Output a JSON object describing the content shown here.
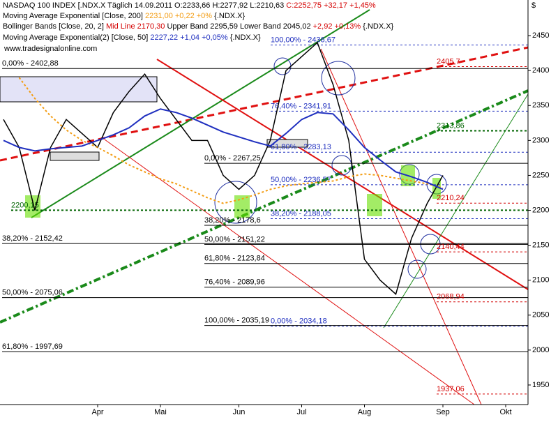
{
  "chart_data": {
    "type": "line",
    "y_axis_label": "$",
    "watermark": "www.tradesignalonline.com",
    "categories": [
      null,
      null,
      null,
      null,
      null,
      null,
      "Apr",
      null,
      null,
      null,
      "Mai",
      null,
      null,
      null,
      null,
      "Jun",
      null,
      null,
      null,
      "Jul",
      null,
      null,
      null,
      "Aug",
      null,
      null,
      null,
      null,
      "Sep",
      null,
      null,
      null,
      "Okt",
      null
    ],
    "series": [
      {
        "name": "NASDAQ 100 INDEX [.NDX.X  Täglich",
        "legend_text": "14.09.2011  O:2233,66 H:2277,92 L:2210,63",
        "legend_change": "C:2252,75 +32,17 +1,45%",
        "color": "#000000",
        "values": [
          2330,
          2290,
          2200,
          2290,
          2330,
          2310,
          2290,
          2340,
          2370,
          2395,
          2360,
          2330,
          2300,
          2300,
          2250,
          2230,
          2250,
          2300,
          2400,
          2420,
          2440,
          2380,
          2300,
          2130,
          2100,
          2080,
          2160,
          2210,
          2250,
          null,
          null,
          null,
          null,
          null
        ]
      },
      {
        "name": "Moving Average Exponential [Close, 200]",
        "legend_text": "2231,00 +0,22 +0%",
        "legend_suffix": "{.NDX.X}",
        "color": "#f39c12",
        "values": [
          null,
          2390,
          2360,
          2335,
          2315,
          2300,
          2290,
          2278,
          2265,
          2255,
          2245,
          2238,
          2228,
          2218,
          2210,
          2215,
          2222,
          2230,
          2235,
          2238,
          2240,
          2242,
          2248,
          2252,
          2250,
          2246,
          2242,
          2238,
          2232,
          null,
          null,
          null,
          null,
          null
        ]
      },
      {
        "name": "Moving Average Exponential(2) [Close, 50]",
        "legend_text": "2227,22 +1,04 +0,05%",
        "legend_suffix": "{.NDX.X}",
        "color": "#1f2fbf",
        "values": [
          2300,
          2290,
          2285,
          2288,
          2290,
          2292,
          2300,
          2308,
          2318,
          2335,
          2345,
          2340,
          2332,
          2322,
          2312,
          2305,
          2298,
          2292,
          2310,
          2330,
          2340,
          2338,
          2315,
          2290,
          2272,
          2255,
          2248,
          2240,
          2230,
          null,
          null,
          null,
          null,
          null
        ]
      }
    ],
    "bollinger_legend": {
      "name": "Bollinger Bands [Close, 20, 2]",
      "mid": "Mid Line 2170,30",
      "bands": "Upper Band 2295,59 Lower Band 2045,02",
      "change": "+2,92 +0,13%",
      "suffix": "{.NDX.X}"
    },
    "levels": [
      {
        "value": 2402.88,
        "label": "0,00% - 2402,88",
        "color": "#000000"
      },
      {
        "value": 2436.67,
        "label": "100,00% - 2436,67",
        "color": "#1f2fbf"
      },
      {
        "value": 2341.91,
        "label": "76,40% - 2341,91",
        "color": "#1f2fbf"
      },
      {
        "value": 2283.13,
        "label": "61,80% - 2283,13",
        "color": "#1f2fbf"
      },
      {
        "value": 2236.57,
        "label": "50,00% - 2236,57",
        "color": "#1f2fbf"
      },
      {
        "value": 2188.05,
        "label": "38,20% - 2188,05",
        "color": "#1f2fbf"
      },
      {
        "value": 2034.18,
        "label": "0,00% - 2034,18",
        "color": "#1f2fbf"
      },
      {
        "value": 2267.25,
        "label": "0,00% - 2267,25",
        "color": "#000000"
      },
      {
        "value": 2178.6,
        "label": "38,20% - 2178,6",
        "color": "#000000"
      },
      {
        "value": 2151.22,
        "label": "50,00% - 2151,22",
        "color": "#000000"
      },
      {
        "value": 2123.84,
        "label": "61,80% - 2123,84",
        "color": "#000000"
      },
      {
        "value": 2089.96,
        "label": "76,40% - 2089,96",
        "color": "#000000"
      },
      {
        "value": 2035.19,
        "label": "100,00% - 2035,19",
        "color": "#000000"
      },
      {
        "value": 2152.42,
        "label": "38,20% - 2152,42",
        "color": "#000000"
      },
      {
        "value": 2075.06,
        "label": "50,00% - 2075,06",
        "color": "#000000"
      },
      {
        "value": 1997.69,
        "label": "61,80% - 1997,69",
        "color": "#000000"
      },
      {
        "value": 2200.15,
        "label": "2200,15",
        "color": "#006400"
      },
      {
        "value": 2405.7,
        "label": "2405,7",
        "color": "#d40000"
      },
      {
        "value": 2313.86,
        "label": "2313,86",
        "color": "#006400"
      },
      {
        "value": 2210.24,
        "label": "2210,24",
        "color": "#d40000"
      },
      {
        "value": 2140.44,
        "label": "2140,44",
        "color": "#d40000"
      },
      {
        "value": 2068.94,
        "label": "2068,94",
        "color": "#d40000"
      },
      {
        "value": 1937.06,
        "label": "1937,06",
        "color": "#d40000"
      }
    ],
    "ylim": [
      1922,
      2501
    ],
    "yticks": [
      1950,
      2000,
      2050,
      2100,
      2150,
      2200,
      2250,
      2300,
      2350,
      2400,
      2450
    ]
  }
}
